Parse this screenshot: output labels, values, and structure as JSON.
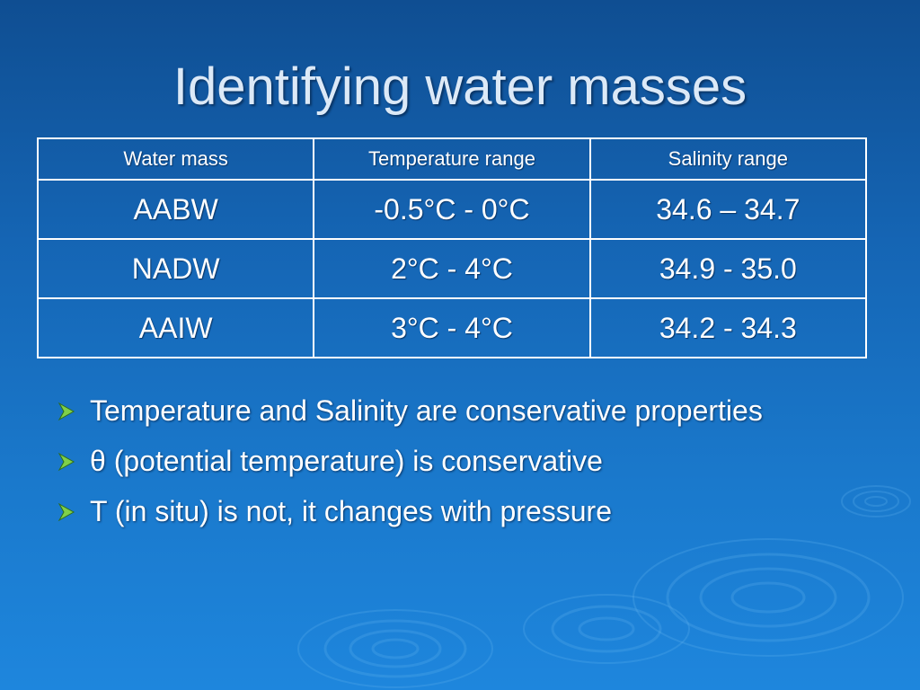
{
  "slide": {
    "title": "Identifying water masses"
  },
  "table": {
    "headers": [
      "Water mass",
      "Temperature range",
      "Salinity range"
    ],
    "rows": [
      [
        "AABW",
        "-0.5°C - 0°C",
        "34.6 – 34.7"
      ],
      [
        "NADW",
        "2°C - 4°C",
        "34.9 - 35.0"
      ],
      [
        "AAIW",
        "3°C - 4°C",
        "34.2 - 34.3"
      ]
    ]
  },
  "bullets": [
    "Temperature and Salinity are conservative properties",
    "θ (potential temperature) is conservative",
    "T (in situ) is not, it changes with pressure"
  ],
  "icons": {
    "bullet": "arrow-bullet-icon",
    "background": "water-ripple-icon"
  },
  "colors": {
    "background_top": "#0f4e92",
    "background_bottom": "#1e86dd",
    "title": "#dce9f7",
    "text": "#ffffff",
    "bullet_arrow": "#7fd04a"
  }
}
